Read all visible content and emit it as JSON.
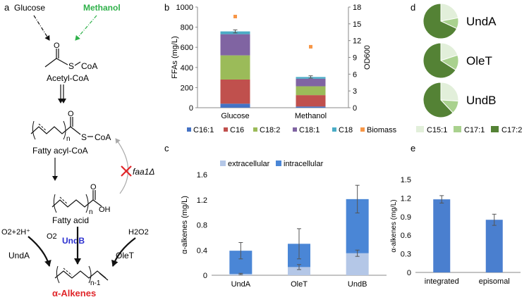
{
  "panel_labels": [
    "a",
    "b",
    "c",
    "d",
    "e"
  ],
  "pathway": {
    "glucose": "Glucose",
    "methanol": "Methanol",
    "acetyl_s": "S",
    "acetyl_coa": "CoA",
    "acetyl_name": "Acetyl-CoA",
    "fatty_acyl_s": "S",
    "fatty_acyl_coa": "CoA",
    "fatty_acyl_n": "n",
    "fatty_acyl_name": "Fatty acyl-CoA",
    "fatty_acid_n": "n",
    "fatty_acid_oh": "OH",
    "fatty_acid_o": "O",
    "fatty_acid_name": "Fatty acid",
    "faa1": "faa1Δ",
    "left_cofactor": "O2+2H⁺",
    "h2o2": "H2O2",
    "o2": "O2",
    "undA": "UndA",
    "undB": "UndB",
    "oleT": "OleT",
    "alkene_n": "n-1",
    "product": "α-Alkenes",
    "colors": {
      "methanol": "#2fb14a",
      "undB": "#2b2fd0",
      "product": "#e0262a",
      "knockout": "#e0262a"
    }
  },
  "chart_data": [
    {
      "panel": "b",
      "type": "bar",
      "stacked": true,
      "categories": [
        "Glucose",
        "Methanol"
      ],
      "series": [
        {
          "name": "C16:1",
          "color": "#4472c4",
          "values": [
            40,
            12
          ]
        },
        {
          "name": "C16",
          "color": "#c0504d",
          "values": [
            240,
            113
          ]
        },
        {
          "name": "C18:2",
          "color": "#9bbb59",
          "values": [
            240,
            88
          ]
        },
        {
          "name": "C18:1",
          "color": "#8064a2",
          "values": [
            210,
            75
          ]
        },
        {
          "name": "C18",
          "color": "#4bacc6",
          "values": [
            28,
            17
          ]
        }
      ],
      "totals": [
        758,
        305
      ],
      "errors": [
        15,
        12
      ],
      "biomass": {
        "name": "Biomass",
        "color": "#f79646",
        "values": [
          16.3,
          10.9
        ]
      },
      "ylabel": "FFAs (mg/L)",
      "y2label": "OD600",
      "ylim": [
        0,
        1000
      ],
      "yticks": [
        0,
        200,
        400,
        600,
        800,
        1000
      ],
      "y2lim": [
        0,
        18
      ],
      "y2ticks": [
        0,
        3,
        6,
        9,
        12,
        15,
        18
      ],
      "legend": "bottom",
      "grid": false
    },
    {
      "panel": "c",
      "type": "bar",
      "stacked": true,
      "categories": [
        "UndA",
        "OleT",
        "UndB"
      ],
      "series": [
        {
          "name": "extracellular",
          "color": "#b4c7e7",
          "values": [
            0.02,
            0.13,
            0.35
          ]
        },
        {
          "name": "intracellular",
          "color": "#4a86d6",
          "values": [
            0.37,
            0.37,
            0.86
          ]
        }
      ],
      "totals": [
        0.39,
        0.5,
        1.21
      ],
      "errors_total": [
        0.13,
        0.24,
        0.22
      ],
      "errors_extracellular": [
        0.01,
        0.04,
        0.05
      ],
      "ylabel": "α-alkenes (mg/L)",
      "ylim": [
        0,
        1.6
      ],
      "yticks": [
        "0",
        "0.4",
        "0.8",
        "1.2",
        "1.6"
      ],
      "legend": "top",
      "grid": false
    },
    {
      "panel": "d",
      "type": "pie",
      "categories": [
        "C15:1",
        "C17:1",
        "C17:2"
      ],
      "colors": [
        "#e2efda",
        "#a9d18e",
        "#548235"
      ],
      "pies": [
        {
          "label": "UndA",
          "values": [
            22,
            10,
            68
          ]
        },
        {
          "label": "OleT",
          "values": [
            20,
            14,
            66
          ]
        },
        {
          "label": "UndB",
          "values": [
            26,
            12,
            62
          ]
        }
      ],
      "legend": "bottom"
    },
    {
      "panel": "e",
      "type": "bar",
      "categories": [
        "integrated",
        "episomal"
      ],
      "values": [
        1.18,
        0.85
      ],
      "errors": [
        0.06,
        0.09
      ],
      "color": "#4a7fcf",
      "ylabel": "α-alkenes (mg/L)",
      "ylim": [
        0,
        1.5
      ],
      "yticks": [
        "0",
        "0.3",
        "0.6",
        "0.9",
        "1.2",
        "1.5"
      ],
      "grid": false
    }
  ]
}
